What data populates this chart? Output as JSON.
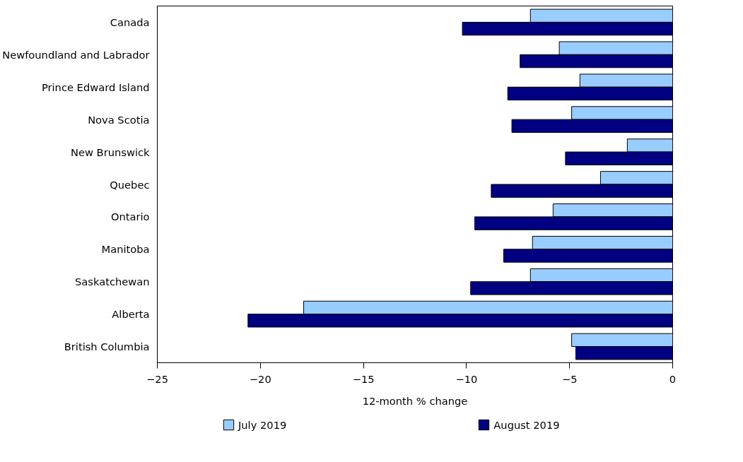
{
  "chart_data": {
    "type": "bar",
    "orientation": "horizontal",
    "xlabel": "12-month % change",
    "categories": [
      "Canada",
      "Newfoundland and Labrador",
      "Prince Edward Island",
      "Nova Scotia",
      "New Brunswick",
      "Quebec",
      "Ontario",
      "Manitoba",
      "Saskatchewan",
      "Alberta",
      "British Columbia"
    ],
    "series": [
      {
        "name": "July 2019",
        "color": "#99ccff",
        "values": [
          -6.9,
          -5.5,
          -4.5,
          -4.9,
          -2.2,
          -3.5,
          -5.8,
          -6.8,
          -6.9,
          -17.9,
          -4.9
        ]
      },
      {
        "name": "August 2019",
        "color": "#000080",
        "values": [
          -10.2,
          -7.4,
          -8.0,
          -7.8,
          -5.2,
          -8.8,
          -9.6,
          -8.2,
          -9.8,
          -20.6,
          -4.7
        ]
      }
    ],
    "xlim": [
      -25,
      0
    ],
    "xticks": [
      -25,
      -20,
      -15,
      -10,
      -5,
      0
    ],
    "grid": false,
    "legend": "bottom"
  }
}
